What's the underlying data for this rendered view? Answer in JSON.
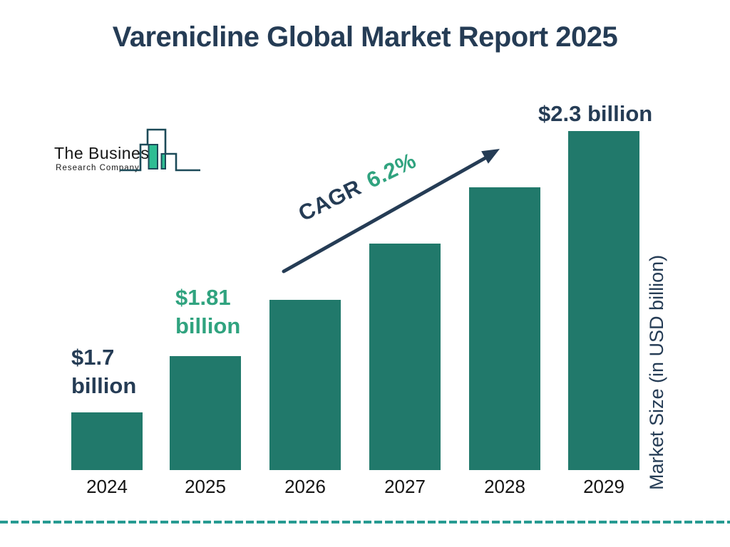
{
  "title": "Varenicline Global Market Report 2025",
  "logo": {
    "line1": "The Business",
    "line2": "Research Company",
    "icon": "bar-chart-skyline"
  },
  "cagr": {
    "label": "CAGR",
    "value": "6.2%"
  },
  "y_axis_label": "Market Size (in USD billion)",
  "value_labels": {
    "y2024": {
      "line1": "$1.7",
      "line2": "billion"
    },
    "y2025": {
      "line1": "$1.81",
      "line2": "billion"
    },
    "y2029": {
      "line1": "$2.3 billion"
    }
  },
  "chart_data": {
    "type": "bar",
    "title": "Varenicline Global Market Report 2025",
    "categories": [
      "2024",
      "2025",
      "2026",
      "2027",
      "2028",
      "2029"
    ],
    "values": [
      1.7,
      1.81,
      1.92,
      2.04,
      2.17,
      2.3
    ],
    "unit": "USD billion",
    "ylabel": "Market Size (in USD billion)",
    "data_labels_visible": {
      "2024": "$1.7 billion",
      "2025": "$1.81 billion",
      "2029": "$2.3 billion"
    },
    "cagr_annotation": "CAGR 6.2%",
    "legend": false,
    "grid": false,
    "axis_ticks": false
  },
  "colors": {
    "navy": "#253c55",
    "teal_bar": "#21796b",
    "green_accent": "#30a37f",
    "logo_outline": "#1c4a58",
    "logo_green": "#2ebd93",
    "dash_line": "#279b92",
    "year_label": "#141414"
  }
}
